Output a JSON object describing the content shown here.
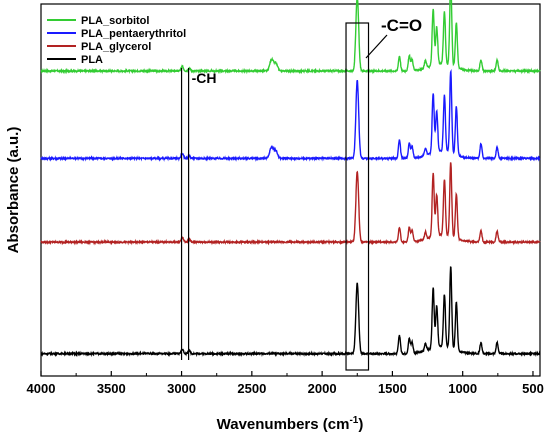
{
  "chart_data": {
    "type": "line",
    "title": "",
    "xlabel": "Wavenumbers (cm",
    "xlabel_sup": "-1",
    "xlabel_end": ")",
    "ylabel": "Absorbance (a.u.)",
    "xlim": [
      4000,
      450
    ],
    "x_reversed": true,
    "x_ticks": [
      4000,
      3500,
      3000,
      2500,
      2000,
      1500,
      1000,
      500
    ],
    "y_ticks": [],
    "grid": false,
    "legend_position": "top-left",
    "series": [
      {
        "name": "PLA_sorbitol",
        "color": "#33cc33",
        "baseline": 0.82,
        "peaks": [
          [
            2360,
            0.03
          ],
          [
            2330,
            0.02
          ],
          [
            1750,
            0.2
          ],
          [
            1450,
            0.04
          ],
          [
            1380,
            0.04
          ],
          [
            1360,
            0.03
          ],
          [
            1265,
            0.02
          ],
          [
            1210,
            0.15
          ],
          [
            1185,
            0.1
          ],
          [
            1130,
            0.14
          ],
          [
            1085,
            0.23
          ],
          [
            1045,
            0.12
          ],
          [
            870,
            0.03
          ],
          [
            755,
            0.03
          ]
        ]
      },
      {
        "name": "PLA_pentaerythritol",
        "color": "#1a1aff",
        "baseline": 0.585,
        "peaks": [
          [
            2360,
            0.03
          ],
          [
            2330,
            0.02
          ],
          [
            1750,
            0.21
          ],
          [
            1450,
            0.05
          ],
          [
            1380,
            0.04
          ],
          [
            1360,
            0.03
          ],
          [
            1265,
            0.02
          ],
          [
            1210,
            0.16
          ],
          [
            1185,
            0.11
          ],
          [
            1130,
            0.15
          ],
          [
            1085,
            0.22
          ],
          [
            1045,
            0.13
          ],
          [
            870,
            0.04
          ],
          [
            755,
            0.03
          ]
        ]
      },
      {
        "name": "PLA_glycerol",
        "color": "#b22222",
        "baseline": 0.36,
        "peaks": [
          [
            1750,
            0.19
          ],
          [
            1450,
            0.04
          ],
          [
            1380,
            0.04
          ],
          [
            1360,
            0.03
          ],
          [
            1265,
            0.02
          ],
          [
            1210,
            0.17
          ],
          [
            1185,
            0.11
          ],
          [
            1130,
            0.15
          ],
          [
            1085,
            0.2
          ],
          [
            1045,
            0.12
          ],
          [
            870,
            0.03
          ],
          [
            755,
            0.03
          ]
        ]
      },
      {
        "name": "PLA",
        "color": "#000000",
        "baseline": 0.06,
        "peaks": [
          [
            1750,
            0.19
          ],
          [
            1450,
            0.05
          ],
          [
            1380,
            0.04
          ],
          [
            1360,
            0.03
          ],
          [
            1265,
            0.02
          ],
          [
            1210,
            0.16
          ],
          [
            1185,
            0.11
          ],
          [
            1130,
            0.14
          ],
          [
            1085,
            0.22
          ],
          [
            1045,
            0.13
          ],
          [
            870,
            0.03
          ],
          [
            755,
            0.03
          ]
        ]
      }
    ],
    "annotations": [
      {
        "text": "-CH",
        "bracket_x": [
          3000,
          2950
        ]
      },
      {
        "text": "-C=O",
        "box_x": [
          1830,
          1670
        ]
      }
    ]
  }
}
